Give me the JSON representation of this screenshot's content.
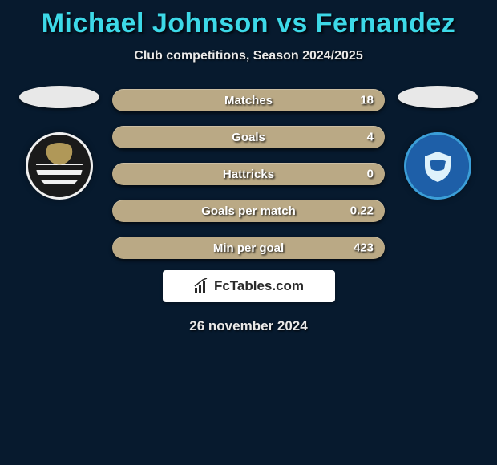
{
  "title": "Michael Johnson vs Fernandez",
  "subtitle": "Club competitions, Season 2024/2025",
  "date": "26 november 2024",
  "logo_text": "FcTables.com",
  "colors": {
    "background": "#071a2e",
    "title": "#3dd9e8",
    "pill": "#baa985",
    "text_light": "#e8e8e8"
  },
  "stats": [
    {
      "label": "Matches",
      "value": "18"
    },
    {
      "label": "Goals",
      "value": "4"
    },
    {
      "label": "Hattricks",
      "value": "0"
    },
    {
      "label": "Goals per match",
      "value": "0.22"
    },
    {
      "label": "Min per goal",
      "value": "423"
    }
  ],
  "left_club": {
    "name": "notts-county"
  },
  "right_club": {
    "name": "peterborough-united"
  }
}
